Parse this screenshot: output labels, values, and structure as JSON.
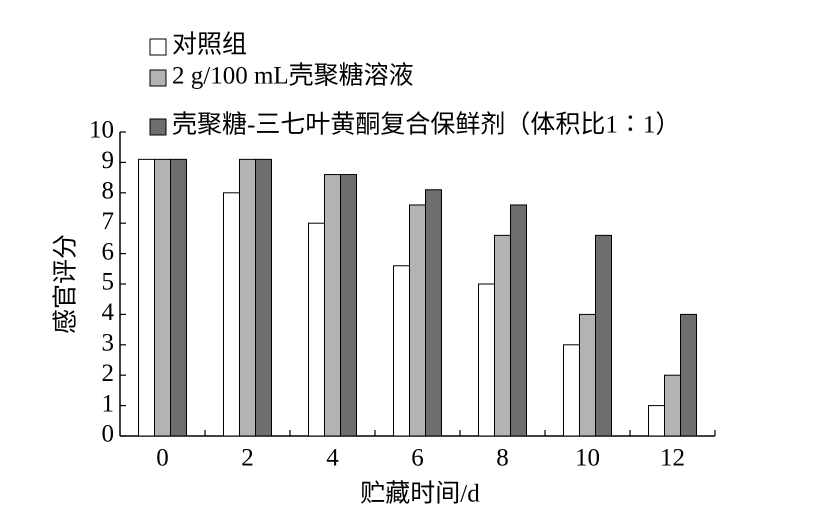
{
  "chart_data": {
    "type": "bar",
    "x_label": "贮藏时间/d",
    "y_label": "感官评分",
    "categories": [
      "0",
      "2",
      "4",
      "6",
      "8",
      "10",
      "12"
    ],
    "series": [
      {
        "name": "对照组",
        "color": "#ffffff",
        "values": [
          9.1,
          8.0,
          7.0,
          5.6,
          5.0,
          3.0,
          1.0
        ]
      },
      {
        "name": "2 g/100 mL壳聚糖溶液",
        "color": "#b3b3b3",
        "values": [
          9.1,
          9.1,
          8.6,
          7.6,
          6.6,
          4.0,
          2.0
        ]
      },
      {
        "name": "壳聚糖-三七叶黄酮复合保鲜剂（体积比1∶1）",
        "color": "#6e6e6e",
        "values": [
          9.1,
          9.1,
          8.6,
          8.1,
          7.6,
          6.6,
          4.0
        ]
      }
    ],
    "ylim": [
      0,
      10
    ],
    "yticks": [
      0,
      1,
      2,
      3,
      4,
      5,
      6,
      7,
      8,
      9,
      10
    ],
    "legend": "top-left",
    "grid": false
  }
}
